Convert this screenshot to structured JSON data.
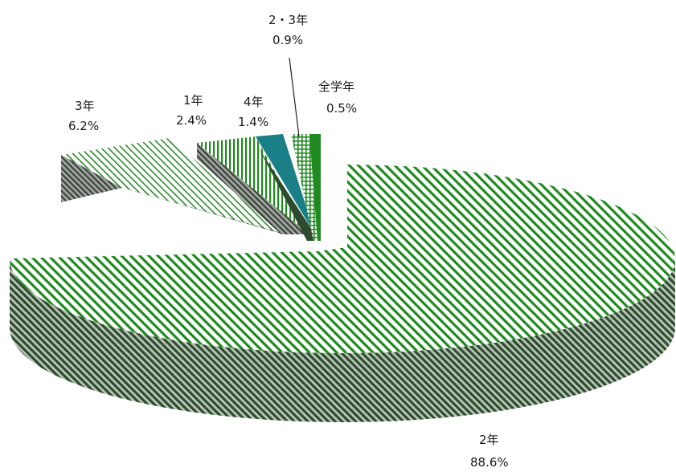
{
  "chart_data": {
    "type": "pie",
    "style": "3d-exploded",
    "categories": [
      "2年",
      "3年",
      "1年",
      "4年",
      "2・3年",
      "全学年"
    ],
    "values": [
      88.6,
      6.2,
      2.4,
      1.4,
      0.9,
      0.5
    ],
    "labels": [
      {
        "name": "2年",
        "value": "88.6%"
      },
      {
        "name": "3年",
        "value": "6.2%"
      },
      {
        "name": "1年",
        "value": "2.4%"
      },
      {
        "name": "4年",
        "value": "1.4%"
      },
      {
        "name": "2・3年",
        "value": "0.9%"
      },
      {
        "name": "全学年",
        "value": "0.5%"
      }
    ],
    "colors": {
      "green": "#1f8a1f",
      "teal": "#1a7f86",
      "dark": "#3f5a3f",
      "gray": "#666666"
    }
  }
}
